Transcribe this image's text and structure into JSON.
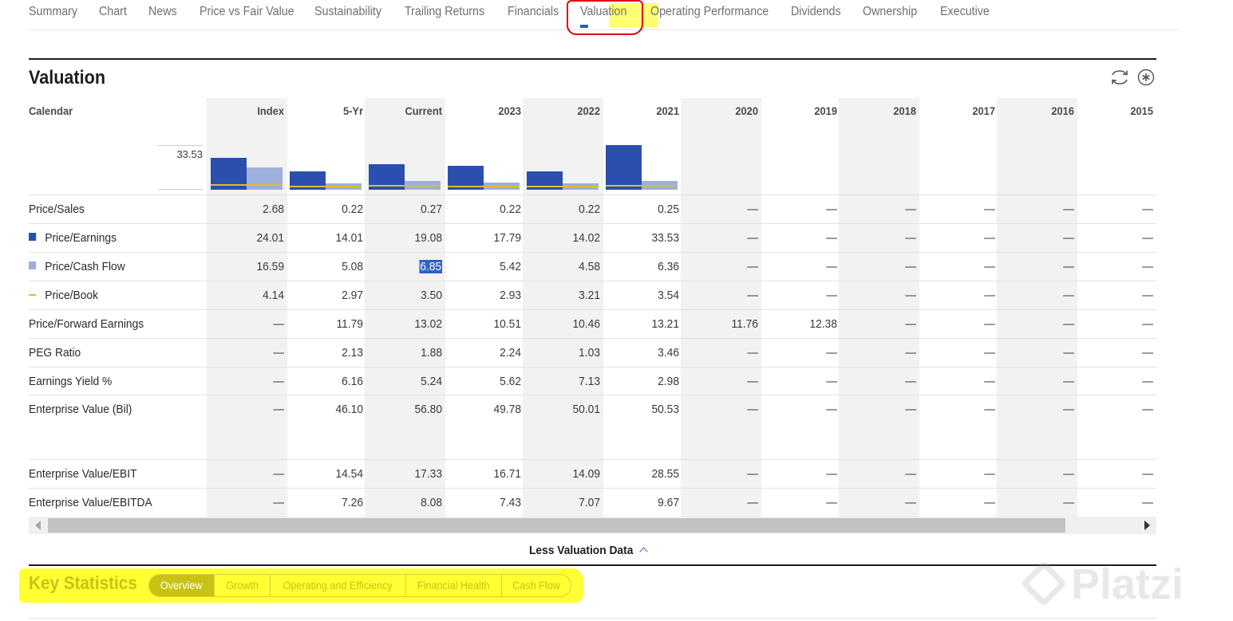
{
  "top_nav": {
    "tabs": [
      "Summary",
      "Chart",
      "News",
      "Price vs Fair Value",
      "Sustainability",
      "Trailing Returns",
      "Financials",
      "Valuation",
      "Operating Performance",
      "Dividends",
      "Ownership",
      "Executive"
    ],
    "active": "Valuation"
  },
  "valuation": {
    "title": "Valuation",
    "calendar_label": "Calendar",
    "columns": [
      "Index",
      "5-Yr",
      "Current",
      "2023",
      "2022",
      "2021",
      "2020",
      "2019",
      "2018",
      "2017",
      "2016",
      "2015"
    ],
    "chart_axis_value": "33.53",
    "legend_colors": {
      "price_earnings": "#2a4fae",
      "price_cash_flow": "#9db0db",
      "price_book": "#d9bf2a"
    },
    "rows": [
      {
        "label": "Price/Sales",
        "values": [
          "2.68",
          "0.22",
          "0.27",
          "0.22",
          "0.22",
          "0.25",
          "—",
          "—",
          "—",
          "—",
          "—",
          "—"
        ]
      },
      {
        "label": "Price/Earnings",
        "values": [
          "24.01",
          "14.01",
          "19.08",
          "17.79",
          "14.02",
          "33.53",
          "—",
          "—",
          "—",
          "—",
          "—",
          "—"
        ]
      },
      {
        "label": "Price/Cash Flow",
        "values": [
          "16.59",
          "5.08",
          "6.85",
          "5.42",
          "4.58",
          "6.36",
          "—",
          "—",
          "—",
          "—",
          "—",
          "—"
        ]
      },
      {
        "label": "Price/Book",
        "values": [
          "4.14",
          "2.97",
          "3.50",
          "2.93",
          "3.21",
          "3.54",
          "—",
          "—",
          "—",
          "—",
          "—",
          "—"
        ]
      },
      {
        "label": "Price/Forward Earnings",
        "values": [
          "—",
          "11.79",
          "13.02",
          "10.51",
          "10.46",
          "13.21",
          "11.76",
          "12.38",
          "—",
          "—",
          "—",
          "—"
        ]
      },
      {
        "label": "PEG Ratio",
        "values": [
          "—",
          "2.13",
          "1.88",
          "2.24",
          "1.03",
          "3.46",
          "—",
          "—",
          "—",
          "—",
          "—",
          "—"
        ]
      },
      {
        "label": "Earnings Yield %",
        "values": [
          "—",
          "6.16",
          "5.24",
          "5.62",
          "7.13",
          "2.98",
          "—",
          "—",
          "—",
          "—",
          "—",
          "—"
        ]
      },
      {
        "label": "Enterprise Value (Bil)",
        "values": [
          "—",
          "46.10",
          "56.80",
          "49.78",
          "50.01",
          "50.53",
          "—",
          "—",
          "—",
          "—",
          "—",
          "—"
        ]
      },
      {
        "label": "Enterprise Value/EBIT",
        "values": [
          "—",
          "14.54",
          "17.33",
          "16.71",
          "14.09",
          "28.55",
          "—",
          "—",
          "—",
          "—",
          "—",
          "—"
        ]
      },
      {
        "label": "Enterprise Value/EBITDA",
        "values": [
          "—",
          "7.26",
          "8.08",
          "7.43",
          "7.07",
          "9.67",
          "—",
          "—",
          "—",
          "—",
          "—",
          "—"
        ]
      }
    ],
    "less_data_label": "Less Valuation Data"
  },
  "chart_data": {
    "type": "bar",
    "categories": [
      "Index",
      "5-Yr",
      "Current",
      "2023",
      "2022",
      "2021"
    ],
    "series": [
      {
        "name": "Price/Earnings",
        "values": [
          24.01,
          14.01,
          19.08,
          17.79,
          14.02,
          33.53
        ]
      },
      {
        "name": "Price/Cash Flow",
        "values": [
          16.59,
          5.08,
          6.85,
          5.42,
          4.58,
          6.36
        ]
      },
      {
        "name": "Price/Book",
        "values": [
          4.14,
          2.97,
          3.5,
          2.93,
          3.21,
          3.54
        ]
      }
    ],
    "ylim": [
      0,
      33.53
    ]
  },
  "key_statistics": {
    "title": "Key Statistics",
    "tabs": [
      "Overview",
      "Growth",
      "Operating and Efficiency",
      "Financial Health",
      "Cash Flow"
    ],
    "active": "Overview"
  },
  "watermark": {
    "text": "Platzi"
  }
}
